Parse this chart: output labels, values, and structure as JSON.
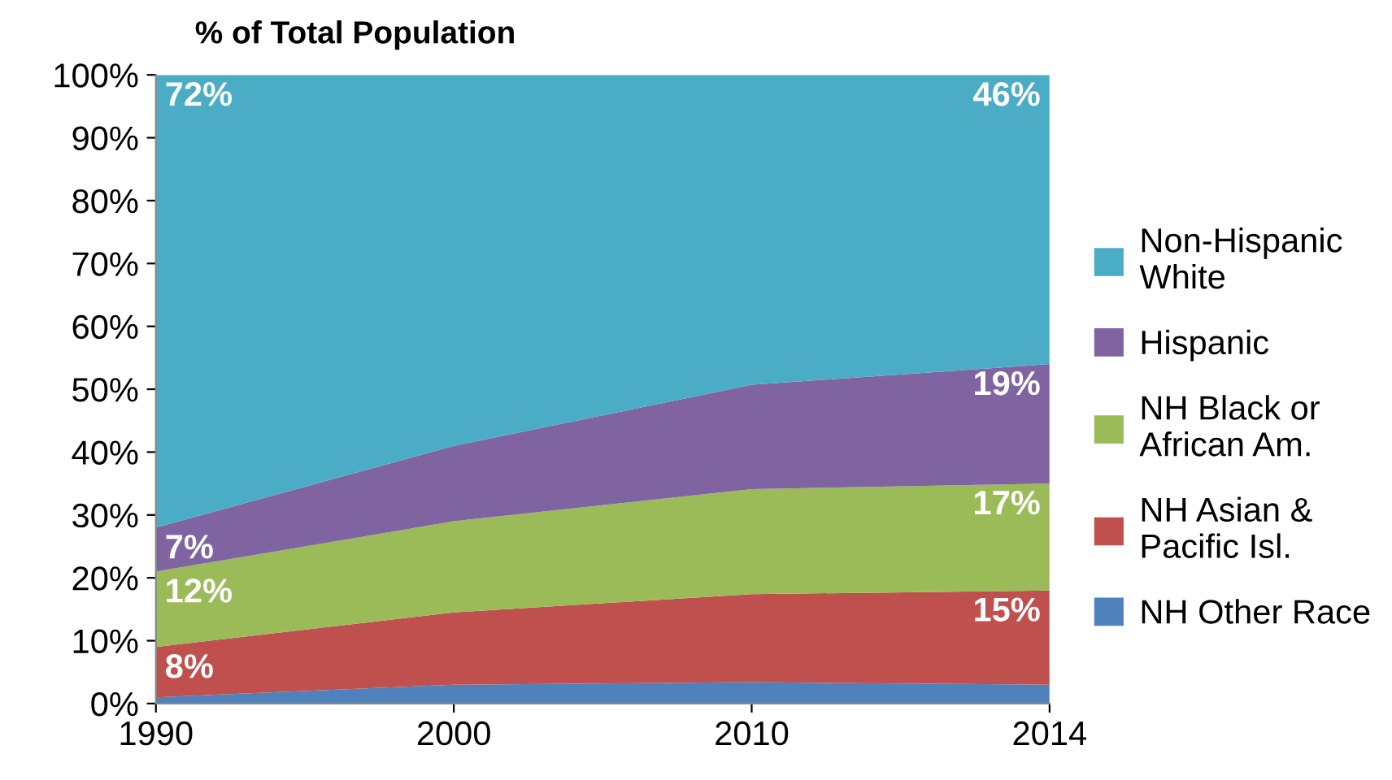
{
  "chart_data": {
    "type": "area",
    "stacked": true,
    "title": "% of Total Population",
    "categories": [
      "1990",
      "2000",
      "2010",
      "2014"
    ],
    "series": [
      {
        "name": "NH Other Race",
        "color": "#4f81bd",
        "values": [
          1,
          3,
          3.4,
          3
        ],
        "value_labels": [
          null,
          null,
          null,
          null
        ]
      },
      {
        "name": "NH Asian &\nPacific Isl.",
        "color": "#c0504d",
        "values": [
          8,
          11.5,
          14,
          15
        ],
        "value_labels": [
          "8%",
          null,
          null,
          "15%"
        ]
      },
      {
        "name": "NH Black or\nAfrican Am.",
        "color": "#9bbb59",
        "values": [
          12,
          14.5,
          16.7,
          17
        ],
        "value_labels": [
          "12%",
          null,
          null,
          "17%"
        ]
      },
      {
        "name": "Hispanic",
        "color": "#8064a2",
        "values": [
          7,
          12,
          16.6,
          19
        ],
        "value_labels": [
          "7%",
          null,
          null,
          "19%"
        ]
      },
      {
        "name": "Non-Hispanic\nWhite",
        "color": "#4bacc6",
        "values": [
          72,
          59,
          49.3,
          46
        ],
        "value_labels": [
          "72%",
          null,
          null,
          "46%"
        ]
      }
    ],
    "ylim": [
      0,
      100
    ],
    "yticks": [
      {
        "value": 0,
        "label": "0%"
      },
      {
        "value": 10,
        "label": "10%"
      },
      {
        "value": 20,
        "label": "20%"
      },
      {
        "value": 30,
        "label": "30%"
      },
      {
        "value": 40,
        "label": "40%"
      },
      {
        "value": 50,
        "label": "50%"
      },
      {
        "value": 60,
        "label": "60%"
      },
      {
        "value": 70,
        "label": "70%"
      },
      {
        "value": 80,
        "label": "80%"
      },
      {
        "value": 90,
        "label": "90%"
      },
      {
        "value": 100,
        "label": "100%"
      }
    ],
    "grid": false,
    "legend": "right"
  }
}
